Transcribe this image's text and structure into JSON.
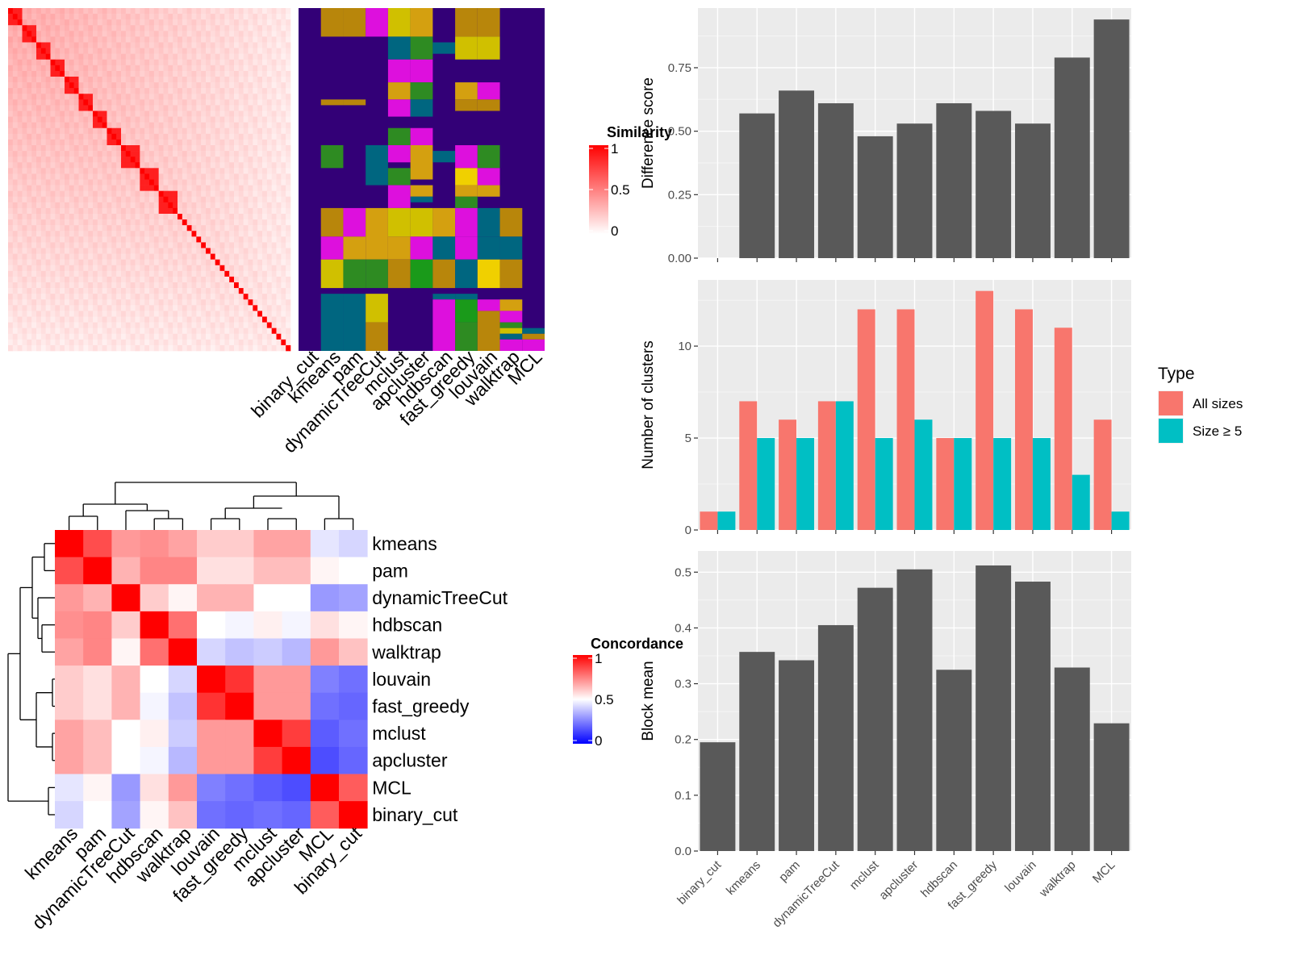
{
  "similarity_heatmap": {
    "legend_title": "Similarity",
    "legend_ticks": [
      "1",
      "0.5",
      "0"
    ],
    "method_labels": [
      "binary_cut",
      "kmeans",
      "pam",
      "dynamicTreeCut",
      "mclust",
      "apcluster",
      "hdbscan",
      "fast_greedy",
      "louvain",
      "walktrap",
      "MCL"
    ],
    "colors": {
      "high": "#FF0000",
      "low": "#FFFFFF"
    }
  },
  "concordance_heatmap": {
    "legend_title": "Concordance",
    "legend_ticks": [
      "1",
      "0.5",
      "0"
    ],
    "row_labels": [
      "kmeans",
      "pam",
      "dynamicTreeCut",
      "hdbscan",
      "walktrap",
      "louvain",
      "fast_greedy",
      "mclust",
      "apcluster",
      "MCL",
      "binary_cut"
    ],
    "col_labels": [
      "kmeans",
      "pam",
      "dynamicTreeCut",
      "hdbscan",
      "walktrap",
      "louvain",
      "fast_greedy",
      "mclust",
      "apcluster",
      "MCL",
      "binary_cut"
    ],
    "colors": {
      "high": "#FF0000",
      "mid": "#FFFFFF",
      "low": "#0000FF"
    }
  },
  "chart_data": [
    {
      "type": "heatmap",
      "ylabel": "",
      "xlabel": "",
      "categories": [
        "kmeans",
        "pam",
        "dynamicTreeCut",
        "hdbscan",
        "walktrap",
        "louvain",
        "fast_greedy",
        "mclust",
        "apcluster",
        "MCL",
        "binary_cut"
      ],
      "matrix": [
        [
          1.0,
          0.85,
          0.7,
          0.72,
          0.68,
          0.6,
          0.6,
          0.68,
          0.68,
          0.45,
          0.42
        ],
        [
          0.85,
          1.0,
          0.65,
          0.74,
          0.74,
          0.56,
          0.56,
          0.63,
          0.63,
          0.52,
          0.5
        ],
        [
          0.7,
          0.65,
          1.0,
          0.6,
          0.52,
          0.65,
          0.65,
          0.5,
          0.5,
          0.3,
          0.32
        ],
        [
          0.72,
          0.74,
          0.6,
          1.0,
          0.78,
          0.5,
          0.48,
          0.53,
          0.48,
          0.56,
          0.52
        ],
        [
          0.68,
          0.74,
          0.52,
          0.78,
          1.0,
          0.42,
          0.38,
          0.4,
          0.36,
          0.7,
          0.62
        ],
        [
          0.6,
          0.56,
          0.65,
          0.5,
          0.42,
          1.0,
          0.9,
          0.7,
          0.7,
          0.25,
          0.22
        ],
        [
          0.6,
          0.56,
          0.65,
          0.48,
          0.38,
          0.9,
          1.0,
          0.7,
          0.7,
          0.22,
          0.2
        ],
        [
          0.68,
          0.63,
          0.5,
          0.53,
          0.4,
          0.7,
          0.7,
          1.0,
          0.88,
          0.18,
          0.22
        ],
        [
          0.68,
          0.63,
          0.5,
          0.48,
          0.36,
          0.7,
          0.7,
          0.88,
          1.0,
          0.15,
          0.2
        ],
        [
          0.45,
          0.52,
          0.3,
          0.56,
          0.7,
          0.25,
          0.22,
          0.18,
          0.15,
          1.0,
          0.82
        ],
        [
          0.42,
          0.5,
          0.32,
          0.52,
          0.62,
          0.22,
          0.2,
          0.22,
          0.2,
          0.82,
          1.0
        ]
      ],
      "range": [
        0,
        1
      ]
    },
    {
      "type": "bar",
      "ylabel": "Difference score",
      "categories": [
        "binary_cut",
        "kmeans",
        "pam",
        "dynamicTreeCut",
        "mclust",
        "apcluster",
        "hdbscan",
        "fast_greedy",
        "louvain",
        "walktrap",
        "MCL"
      ],
      "values": [
        0.0,
        0.57,
        0.66,
        0.61,
        0.48,
        0.53,
        0.61,
        0.58,
        0.53,
        0.79,
        0.94
      ],
      "ylim": [
        0,
        0.985
      ],
      "yticks": [
        0.0,
        0.25,
        0.5,
        0.75
      ],
      "ytick_labels": [
        "0.00",
        "0.25",
        "0.50",
        "0.75"
      ],
      "bar_color": "#595959",
      "grid": true
    },
    {
      "type": "bar",
      "ylabel": "Number of clusters",
      "categories": [
        "binary_cut",
        "kmeans",
        "pam",
        "dynamicTreeCut",
        "mclust",
        "apcluster",
        "hdbscan",
        "fast_greedy",
        "louvain",
        "walktrap",
        "MCL"
      ],
      "series": [
        {
          "name": "All sizes",
          "color": "#F8766D",
          "values": [
            1,
            7,
            6,
            7,
            12,
            12,
            5,
            13,
            12,
            11,
            6
          ]
        },
        {
          "name": "Size ≥ 5",
          "color": "#00BFC4",
          "values": [
            1,
            5,
            5,
            7,
            5,
            6,
            5,
            5,
            5,
            3,
            1
          ]
        }
      ],
      "legend_title": "Type",
      "legend": "right",
      "ylim": [
        0,
        13.6
      ],
      "yticks": [
        0,
        5,
        10
      ],
      "ytick_labels": [
        "0",
        "5",
        "10"
      ],
      "grid": true
    },
    {
      "type": "bar",
      "ylabel": "Block mean",
      "categories": [
        "binary_cut",
        "kmeans",
        "pam",
        "dynamicTreeCut",
        "mclust",
        "apcluster",
        "hdbscan",
        "fast_greedy",
        "louvain",
        "walktrap",
        "MCL"
      ],
      "values": [
        0.195,
        0.357,
        0.342,
        0.405,
        0.472,
        0.505,
        0.325,
        0.512,
        0.483,
        0.329,
        0.229
      ],
      "ylim": [
        0,
        0.538
      ],
      "yticks": [
        0.0,
        0.1,
        0.2,
        0.3,
        0.4,
        0.5
      ],
      "ytick_labels": [
        "0.0",
        "0.1",
        "0.2",
        "0.3",
        "0.4",
        "0.5"
      ],
      "bar_color": "#595959",
      "grid": true
    }
  ]
}
